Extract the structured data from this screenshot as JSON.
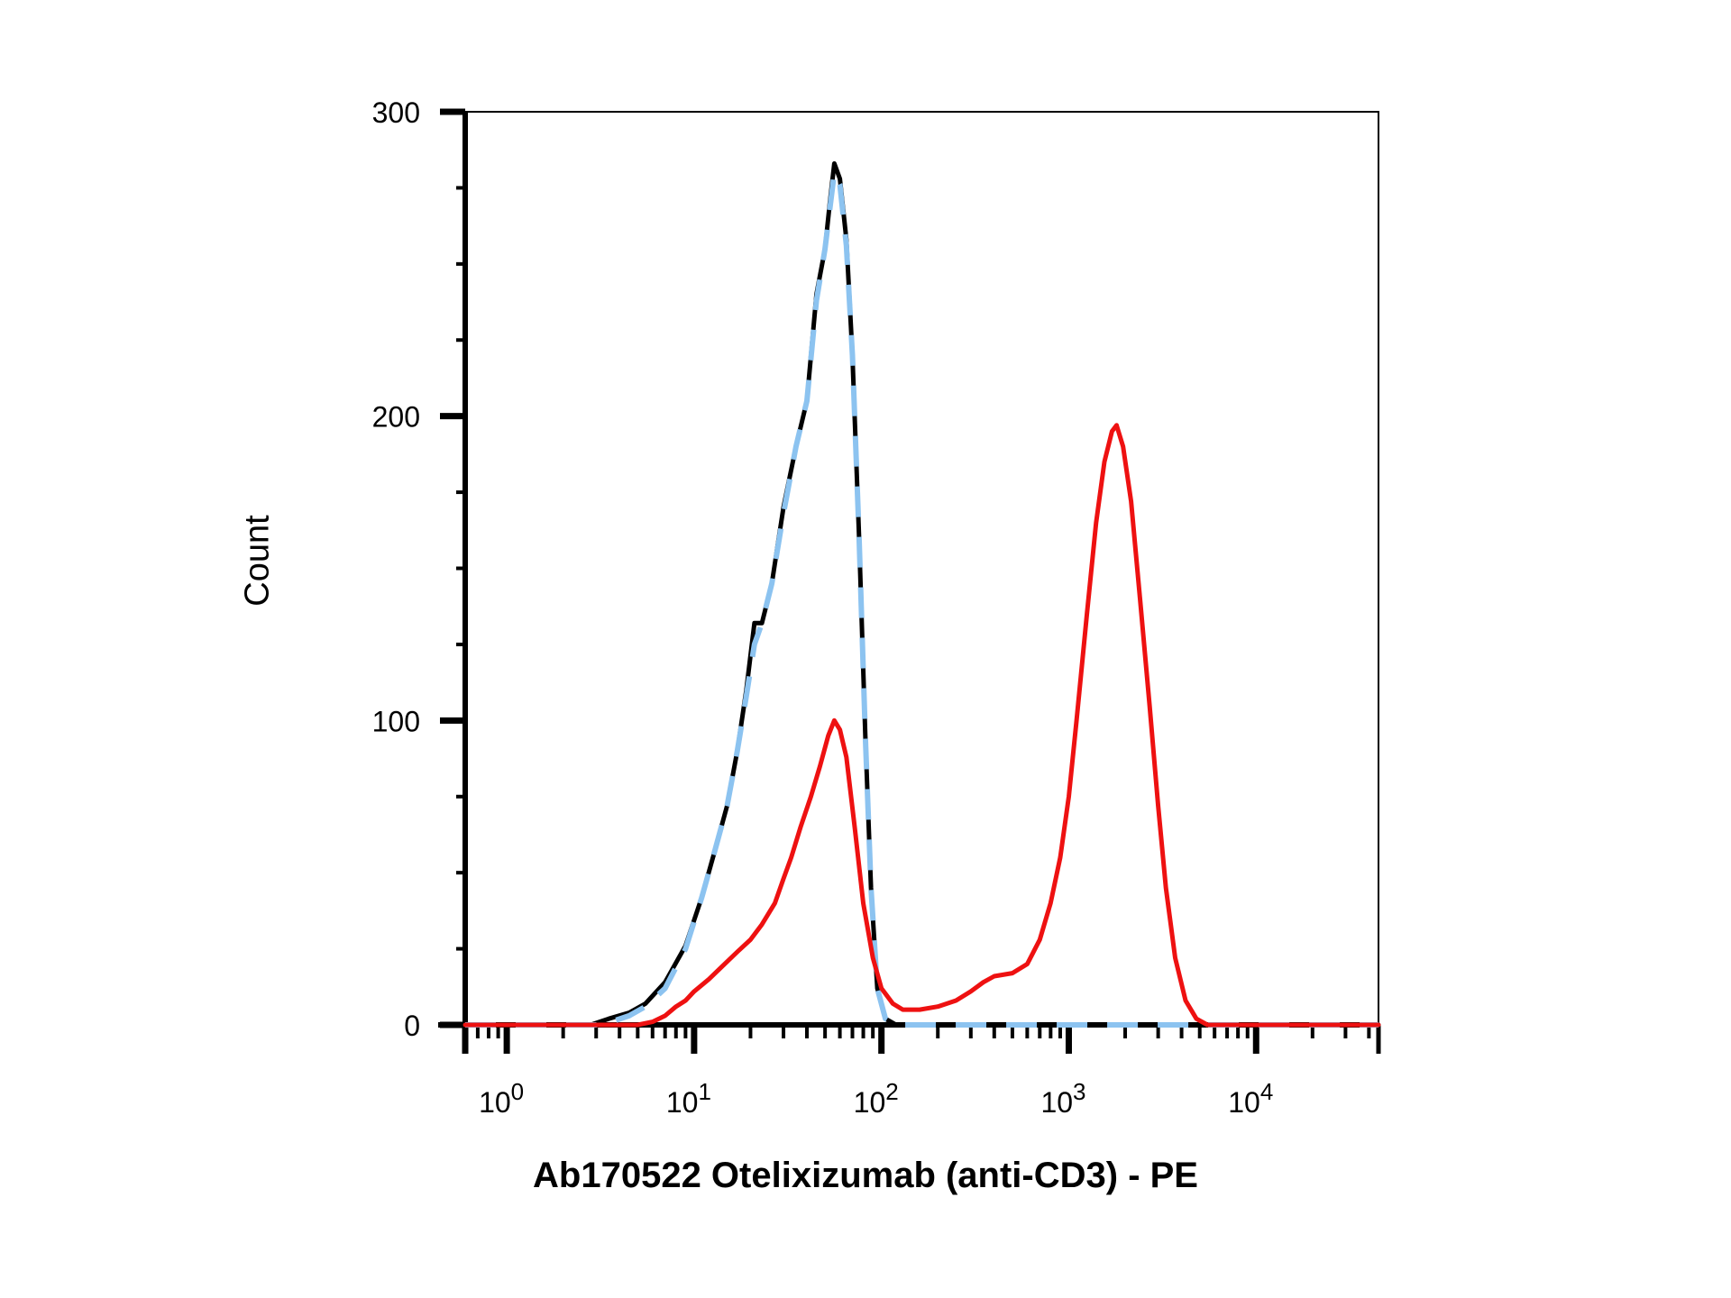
{
  "chart_data": {
    "type": "line",
    "title": "",
    "xlabel": "Ab170522 Otelixizumab (anti-CD3) - PE",
    "ylabel": "Count",
    "x_scale": "log",
    "xlim": [
      0.6,
      45000
    ],
    "ylim": [
      0,
      300
    ],
    "x_tick_labels": [
      {
        "value": 1,
        "base": "10",
        "exp": "0"
      },
      {
        "value": 10,
        "base": "10",
        "exp": "1"
      },
      {
        "value": 100,
        "base": "10",
        "exp": "2"
      },
      {
        "value": 1000,
        "base": "10",
        "exp": "3"
      },
      {
        "value": 10000,
        "base": "10",
        "exp": "4"
      }
    ],
    "y_tick_labels": [
      "0",
      "100",
      "200",
      "300"
    ],
    "y_ticks": [
      0,
      100,
      200,
      300
    ],
    "grid": false,
    "legend": "none",
    "series": [
      {
        "color": "#000000",
        "style": "solid",
        "points": [
          [
            0.6,
            0
          ],
          [
            2.8,
            0
          ],
          [
            3.5,
            2
          ],
          [
            4.5,
            4
          ],
          [
            5.5,
            7
          ],
          [
            7,
            14
          ],
          [
            9,
            26
          ],
          [
            11,
            42
          ],
          [
            13,
            58
          ],
          [
            15,
            72
          ],
          [
            17,
            90
          ],
          [
            19,
            110
          ],
          [
            21,
            132
          ],
          [
            23,
            132
          ],
          [
            26,
            145
          ],
          [
            30,
            170
          ],
          [
            35,
            190
          ],
          [
            40,
            205
          ],
          [
            45,
            240
          ],
          [
            50,
            255
          ],
          [
            53,
            270
          ],
          [
            56,
            283
          ],
          [
            60,
            278
          ],
          [
            65,
            258
          ],
          [
            70,
            220
          ],
          [
            76,
            160
          ],
          [
            82,
            95
          ],
          [
            88,
            45
          ],
          [
            95,
            12
          ],
          [
            105,
            2
          ],
          [
            120,
            0
          ],
          [
            45000,
            0
          ]
        ]
      },
      {
        "color": "#8cc3f0",
        "style": "dashed",
        "points": [
          [
            0.6,
            0
          ],
          [
            3,
            0
          ],
          [
            3.6,
            1
          ],
          [
            4.5,
            3
          ],
          [
            5.5,
            6
          ],
          [
            7,
            12
          ],
          [
            9,
            25
          ],
          [
            11,
            42
          ],
          [
            13,
            58
          ],
          [
            15,
            72
          ],
          [
            17,
            90
          ],
          [
            19,
            108
          ],
          [
            21,
            125
          ],
          [
            23,
            132
          ],
          [
            26,
            145
          ],
          [
            30,
            168
          ],
          [
            35,
            190
          ],
          [
            40,
            205
          ],
          [
            45,
            238
          ],
          [
            50,
            255
          ],
          [
            53,
            268
          ],
          [
            56,
            280
          ],
          [
            60,
            276
          ],
          [
            65,
            256
          ],
          [
            70,
            220
          ],
          [
            76,
            160
          ],
          [
            82,
            95
          ],
          [
            88,
            45
          ],
          [
            95,
            12
          ],
          [
            105,
            2
          ],
          [
            120,
            0
          ],
          [
            45000,
            0
          ]
        ]
      },
      {
        "color": "#ee1111",
        "style": "solid",
        "points": [
          [
            0.6,
            0
          ],
          [
            5,
            0
          ],
          [
            6,
            1
          ],
          [
            7,
            3
          ],
          [
            8,
            6
          ],
          [
            9,
            8
          ],
          [
            10,
            11
          ],
          [
            12,
            15
          ],
          [
            14,
            19
          ],
          [
            17,
            24
          ],
          [
            20,
            28
          ],
          [
            23,
            33
          ],
          [
            27,
            40
          ],
          [
            30,
            48
          ],
          [
            33,
            55
          ],
          [
            37,
            65
          ],
          [
            42,
            75
          ],
          [
            47,
            85
          ],
          [
            52,
            95
          ],
          [
            56,
            100
          ],
          [
            60,
            97
          ],
          [
            65,
            88
          ],
          [
            72,
            65
          ],
          [
            80,
            40
          ],
          [
            90,
            22
          ],
          [
            100,
            12
          ],
          [
            115,
            7
          ],
          [
            130,
            5
          ],
          [
            160,
            5
          ],
          [
            200,
            6
          ],
          [
            250,
            8
          ],
          [
            300,
            11
          ],
          [
            350,
            14
          ],
          [
            400,
            16
          ],
          [
            500,
            17
          ],
          [
            600,
            20
          ],
          [
            700,
            28
          ],
          [
            800,
            40
          ],
          [
            900,
            55
          ],
          [
            1000,
            75
          ],
          [
            1100,
            100
          ],
          [
            1250,
            135
          ],
          [
            1400,
            165
          ],
          [
            1550,
            185
          ],
          [
            1700,
            195
          ],
          [
            1800,
            197
          ],
          [
            1950,
            190
          ],
          [
            2150,
            172
          ],
          [
            2400,
            140
          ],
          [
            2700,
            105
          ],
          [
            3000,
            72
          ],
          [
            3300,
            45
          ],
          [
            3700,
            22
          ],
          [
            4200,
            8
          ],
          [
            4800,
            2
          ],
          [
            5500,
            0
          ],
          [
            45000,
            0
          ]
        ]
      }
    ]
  }
}
